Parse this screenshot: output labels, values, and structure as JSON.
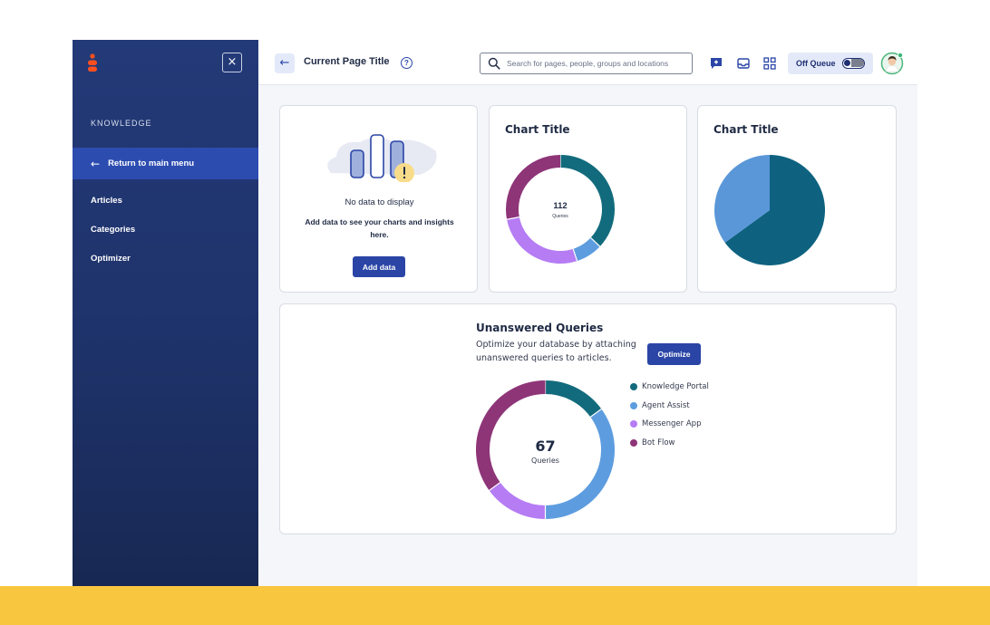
{
  "sidebar": {
    "section_heading": "KNOWLEDGE",
    "return_label": "Return to main menu",
    "items": [
      {
        "label": "Articles"
      },
      {
        "label": "Categories"
      },
      {
        "label": "Optimizer"
      }
    ],
    "close_symbol": "×"
  },
  "header": {
    "title": "Current Page Title",
    "search_placeholder": "Search for pages, people, groups and locations",
    "queue_status": "Off Queue",
    "icons": [
      "chat-icon",
      "inbox-icon",
      "apps-grid-icon"
    ]
  },
  "empty_card": {
    "title": "No data to display",
    "description": "Add data to see your charts and insights here.",
    "button_label": "Add data"
  },
  "chart_data": [
    {
      "type": "donut",
      "title": "Chart Title",
      "center_value": "112",
      "center_label": "Queries",
      "slices": [
        {
          "name": "Knowledge Portal",
          "value": 0.37,
          "color": "#126b7c"
        },
        {
          "name": "Agent Assist",
          "value": 0.08,
          "color": "#5d9ddf"
        },
        {
          "name": "Messenger App",
          "value": 0.27,
          "color": "#b57cf4"
        },
        {
          "name": "Bot Flow",
          "value": 0.28,
          "color": "#8e3578"
        }
      ]
    },
    {
      "type": "pie",
      "title": "Chart Title",
      "slices": [
        {
          "value": 0.65,
          "color": "#0e6280"
        },
        {
          "value": 0.35,
          "color": "#5a97d8"
        }
      ]
    },
    {
      "type": "donut",
      "title": "Unanswered Queries",
      "center_value": "67",
      "center_label": "Queries",
      "slices": [
        {
          "name": "Knowledge Portal",
          "value": 0.15,
          "color": "#126b7c"
        },
        {
          "name": "Agent Assist",
          "value": 0.35,
          "color": "#5d9ddf"
        },
        {
          "name": "Messenger App",
          "value": 0.15,
          "color": "#b57cf4"
        },
        {
          "name": "Bot Flow",
          "value": 0.35,
          "color": "#8e3578"
        }
      ]
    }
  ],
  "unanswered": {
    "title": "Unanswered Queries",
    "description": "Optimize your database by attaching unanswered queries to articles.",
    "button_label": "Optimize"
  },
  "legend": [
    {
      "label": "Knowledge Portal",
      "color": "#126b7c"
    },
    {
      "label": "Agent Assist",
      "color": "#5d9ddf"
    },
    {
      "label": "Messenger App",
      "color": "#b57cf4"
    },
    {
      "label": "Bot Flow",
      "color": "#8e3578"
    }
  ],
  "colors": {
    "sidebar_bg": "#1e3269",
    "sidebar_active": "#2c4cb0",
    "primary_button": "#2a45a6",
    "page_bg": "#f5f6f9",
    "bottom_accent": "#f9c63f"
  }
}
